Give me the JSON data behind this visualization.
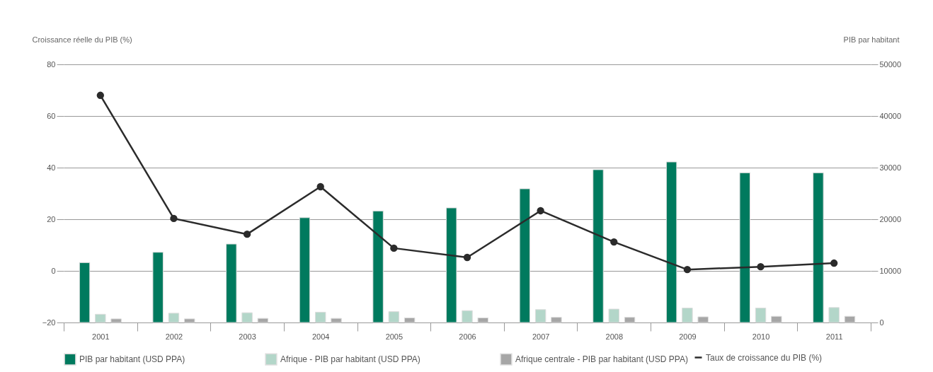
{
  "chart_data": {
    "type": "bar",
    "ylabel": "Croissance réelle du PIB (%)",
    "y2label": "PIB par habitant",
    "categories": [
      "2001",
      "2002",
      "2003",
      "2004",
      "2005",
      "2006",
      "2007",
      "2008",
      "2009",
      "2010",
      "2011"
    ],
    "series": [
      {
        "name": "PIB par habitant (USD PPA)",
        "axis": "y2",
        "color": "#007a5e",
        "values": [
          11600,
          13600,
          15200,
          20300,
          21600,
          22200,
          25900,
          29600,
          31100,
          29000,
          29000
        ]
      },
      {
        "name": "Afrique - PIB par habitant (USD PPA)",
        "axis": "y2",
        "color": "#b3d6c9",
        "values": [
          1600,
          1800,
          1900,
          2000,
          2100,
          2300,
          2500,
          2600,
          2800,
          2800,
          2900
        ]
      },
      {
        "name": "Afrique centrale - PIB par habitant (USD PPA)",
        "axis": "y2",
        "color": "#a6a6a6",
        "values": [
          700,
          700,
          800,
          800,
          900,
          900,
          1000,
          1000,
          1100,
          1200,
          1200
        ]
      },
      {
        "name": "Taux de croissance du PIB (%)",
        "type": "line",
        "axis": "y",
        "color": "#2b2b2b",
        "values": [
          68,
          20.3,
          14.2,
          32.6,
          8.8,
          5.2,
          23.3,
          11.2,
          0.5,
          1.6,
          3.0
        ]
      }
    ],
    "ylim": [
      -20,
      80
    ],
    "yticks": [
      -20,
      0,
      20,
      40,
      60,
      80
    ],
    "y2lim": [
      0,
      50000
    ],
    "y2ticks": [
      0,
      10000,
      20000,
      30000,
      40000,
      50000
    ],
    "grid": "y",
    "legend": "bottom",
    "marker": "circle",
    "line_style": "solid"
  }
}
